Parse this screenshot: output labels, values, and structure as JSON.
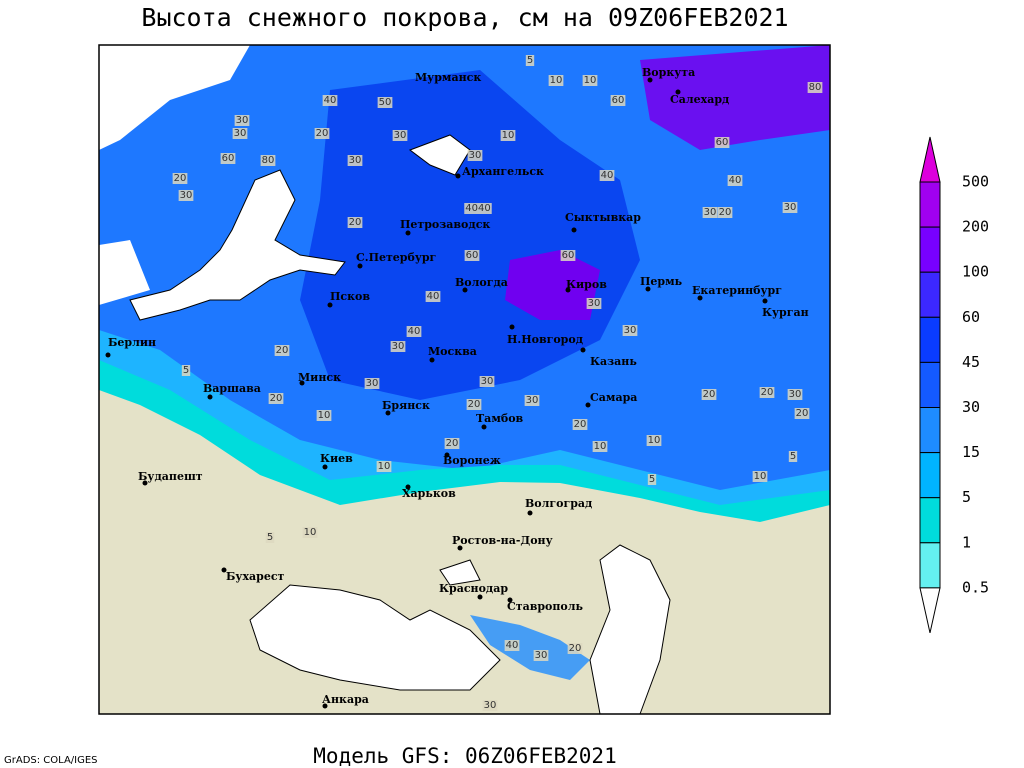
{
  "title": "Высота снежного покрова, см на 09Z06FEB2021",
  "footer": "Модель GFS: 06Z06FEB2021",
  "credit": "GrADS: COLA/IGES",
  "map": {
    "cities": [
      "Мурманск",
      "Воркута",
      "Салехард",
      "Архангельск",
      "Петрозаводск",
      "Сыктывкар",
      "С.Петербург",
      "Вологда",
      "Киров",
      "Пермь",
      "Екатеринбург",
      "Курган",
      "Псков",
      "Берлин",
      "Н.Новгород",
      "Москва",
      "Казань",
      "Минск",
      "Варшава",
      "Самара",
      "Брянск",
      "Тамбов",
      "Киев",
      "Воронеж",
      "Будапешт",
      "Харьков",
      "Волгоград",
      "Ростов-на-Дону",
      "Бухарест",
      "Краснодар",
      "Ставрополь",
      "Анкара"
    ],
    "contour_labels": [
      "5",
      "10",
      "10",
      "60",
      "80",
      "40",
      "50",
      "30",
      "30",
      "20",
      "30",
      "30",
      "10",
      "30",
      "60",
      "80",
      "20",
      "30",
      "40",
      "40",
      "60",
      "30",
      "30",
      "20",
      "4040",
      "20",
      "60",
      "60",
      "40",
      "30",
      "40",
      "30",
      "20",
      "30",
      "30",
      "30",
      "20",
      "5",
      "10",
      "20",
      "20",
      "30",
      "20",
      "20",
      "30",
      "20",
      "20",
      "10",
      "10",
      "5",
      "10",
      "5",
      "10",
      "5",
      "10",
      "40",
      "30",
      "20",
      "30"
    ]
  },
  "colorbar": {
    "labels": [
      "500",
      "200",
      "100",
      "60",
      "45",
      "30",
      "15",
      "5",
      "1",
      "0.5"
    ],
    "colors": [
      "#dc00dc",
      "#a000f0",
      "#7800ff",
      "#3c28ff",
      "#0a3cff",
      "#145aff",
      "#1e8cff",
      "#00b4ff",
      "#00dcdc",
      "#64f0f0",
      "#ffffff"
    ]
  }
}
